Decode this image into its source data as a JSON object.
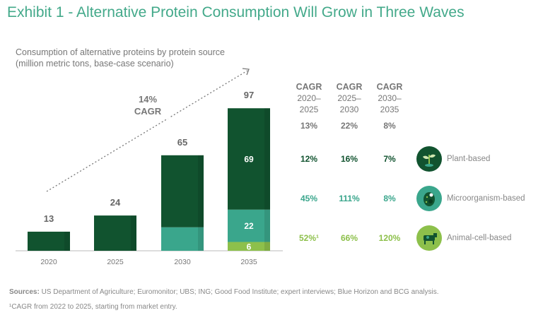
{
  "title": "Exhibit 1 - Alternative Protein Consumption Will Grow in Three Waves",
  "subtitle_line1": "Consumption of alternative proteins by protein source",
  "subtitle_line2": "(million metric tons, base-case scenario)",
  "colors": {
    "plant": "#11532f",
    "micro": "#3aa68c",
    "animal": "#8dc04b",
    "title": "#43a98a"
  },
  "chart_data": {
    "type": "bar",
    "stacked": true,
    "title": "Consumption of alternative proteins by protein source",
    "ylabel": "million metric tons, base-case scenario",
    "categories": [
      "2020",
      "2025",
      "2030",
      "2035"
    ],
    "series": [
      {
        "name": "Plant-based",
        "values": [
          13,
          24,
          49,
          69
        ]
      },
      {
        "name": "Microorganism-based",
        "values": [
          0,
          0,
          16,
          22
        ]
      },
      {
        "name": "Animal-cell-based",
        "values": [
          0,
          0,
          0,
          6
        ]
      }
    ],
    "totals": [
      13,
      24,
      65,
      97
    ],
    "segment_labels": {
      "2035": [
        "69",
        "22",
        "6"
      ]
    },
    "ylim": [
      0,
      100
    ],
    "grid": false,
    "annotation": {
      "line1": "14%",
      "line2": "CAGR"
    }
  },
  "cagr_table": {
    "headers": [
      {
        "label": "CAGR",
        "l1": "2020–",
        "l2": "2025"
      },
      {
        "label": "CAGR",
        "l1": "2025–",
        "l2": "2030"
      },
      {
        "label": "CAGR",
        "l1": "2030–",
        "l2": "2035"
      }
    ],
    "total": [
      "13%",
      "22%",
      "8%"
    ],
    "rows": [
      {
        "name": "Plant-based",
        "icon": "plant-icon",
        "values": [
          "12%",
          "16%",
          "7%"
        ]
      },
      {
        "name": "Microorganism-based",
        "icon": "microorganism-icon",
        "values": [
          "45%",
          "111%",
          "8%"
        ]
      },
      {
        "name": "Animal-cell-based",
        "icon": "cow-icon",
        "values": [
          "52%¹",
          "66%",
          "120%"
        ]
      }
    ]
  },
  "footer": {
    "sources_label": "Sources:",
    "sources_text": " US Department of Agriculture; Euromonitor; UBS; ING; Good Food Institute; expert interviews; Blue Horizon and BCG analysis.",
    "note": "¹CAGR from 2022 to 2025, starting from market entry."
  }
}
